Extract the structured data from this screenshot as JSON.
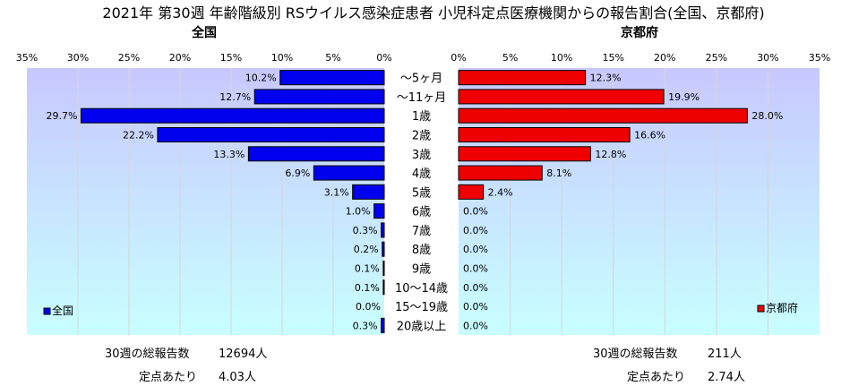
{
  "title": "2021年 第30週 年齢階級別 RSウイルス感染症患者 小児科定点医療機関からの報告割合(全国、京都府)",
  "colors": {
    "national_bar": "#0000ee",
    "kyoto_bar": "#ee0000",
    "plot_top": "#c8c8ff",
    "plot_bottom": "#c8ffff"
  },
  "chart_data": {
    "type": "bar",
    "orientation": "horizontal",
    "categories": [
      "～5ヶ月",
      "～11ヶ月",
      "1歳",
      "2歳",
      "3歳",
      "4歳",
      "5歳",
      "6歳",
      "7歳",
      "8歳",
      "9歳",
      "10～14歳",
      "15～19歳",
      "20歳以上"
    ],
    "xlim": [
      0,
      35
    ],
    "ticks": [
      "35%",
      "30%",
      "25%",
      "20%",
      "15%",
      "10%",
      "5%",
      "0%"
    ],
    "ticks_right": [
      "0%",
      "5%",
      "10%",
      "15%",
      "20%",
      "25%",
      "30%",
      "35%"
    ],
    "grid": true,
    "series": [
      {
        "name": "全国",
        "panel_title": "全国",
        "legend": "全国",
        "side": "left",
        "values": [
          10.2,
          12.7,
          29.7,
          22.2,
          13.3,
          6.9,
          3.1,
          1.0,
          0.3,
          0.2,
          0.1,
          0.1,
          0.0,
          0.3
        ],
        "labels": [
          "10.2%",
          "12.7%",
          "29.7%",
          "22.2%",
          "13.3%",
          "6.9%",
          "3.1%",
          "1.0%",
          "0.3%",
          "0.2%",
          "0.1%",
          "0.1%",
          "0.0%",
          "0.3%"
        ]
      },
      {
        "name": "京都府",
        "panel_title": "京都府",
        "legend": "京都府",
        "side": "right",
        "values": [
          12.3,
          19.9,
          28.0,
          16.6,
          12.8,
          8.1,
          2.4,
          0.0,
          0.0,
          0.0,
          0.0,
          0.0,
          0.0,
          0.0
        ],
        "labels": [
          "12.3%",
          "19.9%",
          "28.0%",
          "16.6%",
          "12.8%",
          "8.1%",
          "2.4%",
          "0.0%",
          "0.0%",
          "0.0%",
          "0.0%",
          "0.0%",
          "0.0%",
          "0.0%"
        ]
      }
    ]
  },
  "footer": {
    "national_total_label": "30週の総報告数",
    "national_total_value": "12694人",
    "national_per_label": "定点あたり",
    "national_per_value": "4.03人",
    "kyoto_total_label": "30週の総報告数",
    "kyoto_total_value": "211人",
    "kyoto_per_label": "定点あたり",
    "kyoto_per_value": "2.74人"
  }
}
